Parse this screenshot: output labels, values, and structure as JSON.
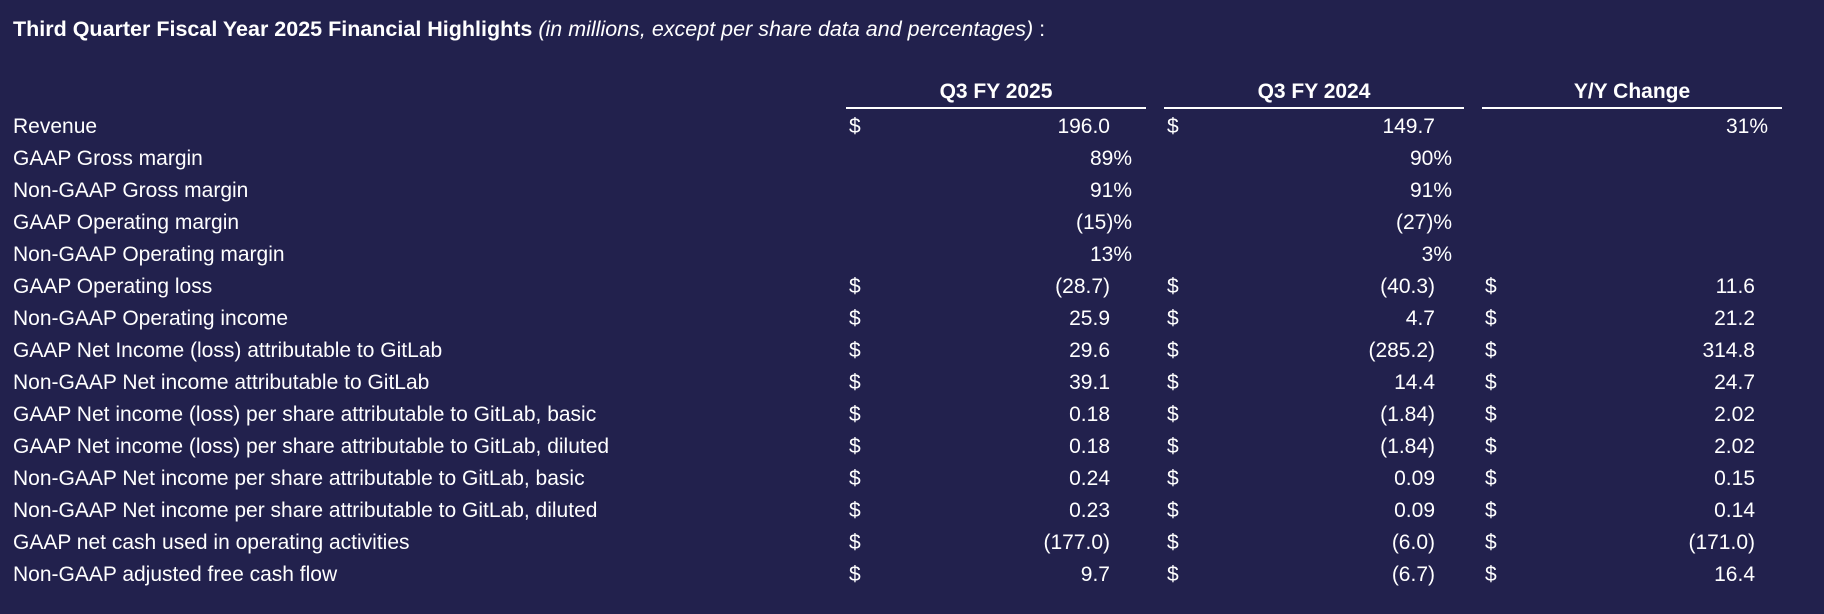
{
  "title": {
    "bold": "Third Quarter Fiscal Year 2025 Financial Highlights",
    "italic": "(in millions, except per share data and percentages)",
    "suffix": " :"
  },
  "columns": [
    "Q3 FY 2025",
    "Q3 FY 2024",
    "Y/Y Change"
  ],
  "rows": [
    {
      "label": "Revenue",
      "q3_2025": {
        "cur": "$",
        "val": "196.0"
      },
      "q3_2024": {
        "cur": "$",
        "val": "149.7"
      },
      "yy": {
        "cur": "",
        "val": "31%"
      }
    },
    {
      "label": "GAAP Gross margin",
      "q3_2025": {
        "cur": "",
        "val": "89%"
      },
      "q3_2024": {
        "cur": "",
        "val": "90%"
      },
      "yy": {
        "cur": "",
        "val": ""
      }
    },
    {
      "label": "Non-GAAP Gross margin",
      "q3_2025": {
        "cur": "",
        "val": "91%"
      },
      "q3_2024": {
        "cur": "",
        "val": "91%"
      },
      "yy": {
        "cur": "",
        "val": ""
      }
    },
    {
      "label": "GAAP Operating margin",
      "q3_2025": {
        "cur": "",
        "val": "(15)%"
      },
      "q3_2024": {
        "cur": "",
        "val": "(27)%"
      },
      "yy": {
        "cur": "",
        "val": ""
      }
    },
    {
      "label": "Non-GAAP Operating margin",
      "q3_2025": {
        "cur": "",
        "val": "13%"
      },
      "q3_2024": {
        "cur": "",
        "val": "3%"
      },
      "yy": {
        "cur": "",
        "val": ""
      }
    },
    {
      "label": "GAAP Operating loss",
      "q3_2025": {
        "cur": "$",
        "val": "(28.7)"
      },
      "q3_2024": {
        "cur": "$",
        "val": "(40.3)"
      },
      "yy": {
        "cur": "$",
        "val": "11.6"
      }
    },
    {
      "label": "Non-GAAP Operating income",
      "q3_2025": {
        "cur": "$",
        "val": "25.9"
      },
      "q3_2024": {
        "cur": "$",
        "val": "4.7"
      },
      "yy": {
        "cur": "$",
        "val": "21.2"
      }
    },
    {
      "label": "GAAP Net Income (loss) attributable to GitLab",
      "q3_2025": {
        "cur": "$",
        "val": "29.6"
      },
      "q3_2024": {
        "cur": "$",
        "val": "(285.2)"
      },
      "yy": {
        "cur": "$",
        "val": "314.8"
      }
    },
    {
      "label": "Non-GAAP Net income attributable to GitLab",
      "q3_2025": {
        "cur": "$",
        "val": "39.1"
      },
      "q3_2024": {
        "cur": "$",
        "val": "14.4"
      },
      "yy": {
        "cur": "$",
        "val": "24.7"
      }
    },
    {
      "label": "GAAP Net income (loss) per share attributable to GitLab, basic",
      "q3_2025": {
        "cur": "$",
        "val": "0.18"
      },
      "q3_2024": {
        "cur": "$",
        "val": "(1.84)"
      },
      "yy": {
        "cur": "$",
        "val": "2.02"
      }
    },
    {
      "label": "GAAP Net income (loss) per share attributable to GitLab, diluted",
      "q3_2025": {
        "cur": "$",
        "val": "0.18"
      },
      "q3_2024": {
        "cur": "$",
        "val": "(1.84)"
      },
      "yy": {
        "cur": "$",
        "val": "2.02"
      }
    },
    {
      "label": "Non-GAAP Net income per share attributable to GitLab, basic",
      "q3_2025": {
        "cur": "$",
        "val": "0.24"
      },
      "q3_2024": {
        "cur": "$",
        "val": "0.09"
      },
      "yy": {
        "cur": "$",
        "val": "0.15"
      }
    },
    {
      "label": "Non-GAAP Net income per share attributable to GitLab, diluted",
      "q3_2025": {
        "cur": "$",
        "val": "0.23"
      },
      "q3_2024": {
        "cur": "$",
        "val": "0.09"
      },
      "yy": {
        "cur": "$",
        "val": "0.14"
      }
    },
    {
      "label": "GAAP net cash used in operating activities",
      "q3_2025": {
        "cur": "$",
        "val": "(177.0)"
      },
      "q3_2024": {
        "cur": "$",
        "val": "(6.0)"
      },
      "yy": {
        "cur": "$",
        "val": "(171.0)"
      }
    },
    {
      "label": "Non-GAAP adjusted free cash flow",
      "q3_2025": {
        "cur": "$",
        "val": "9.7"
      },
      "q3_2024": {
        "cur": "$",
        "val": "(6.7)"
      },
      "yy": {
        "cur": "$",
        "val": "16.4"
      }
    }
  ]
}
